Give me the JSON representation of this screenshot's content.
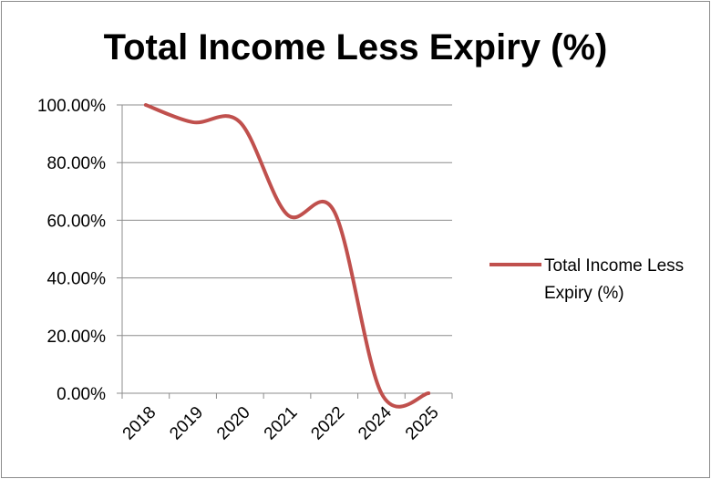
{
  "chart_data": {
    "type": "line",
    "title": "Total Income Less Expiry (%)",
    "categories": [
      "2018",
      "2019",
      "2020",
      "2021",
      "2022",
      "2024",
      "2025"
    ],
    "series": [
      {
        "name": "Total Income Less Expiry (%)",
        "values": [
          100,
          94,
          94,
          62,
          63,
          0,
          0
        ],
        "color": "#c0504d"
      }
    ],
    "yticks": [
      "0.00%",
      "20.00%",
      "40.00%",
      "60.00%",
      "80.00%",
      "100.00%"
    ],
    "ylim": [
      0,
      100
    ],
    "grid": true,
    "legend": "right",
    "colors": {
      "gridline": "#8c8c8c",
      "axis": "#8c8c8c",
      "series": "#c0504d"
    }
  }
}
